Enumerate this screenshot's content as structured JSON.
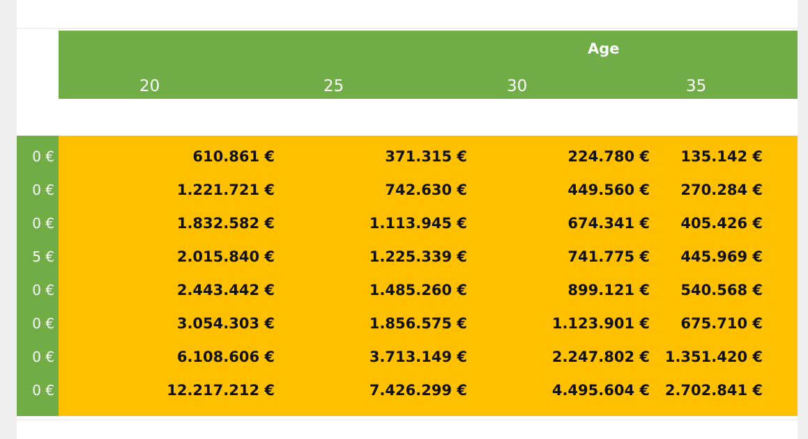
{
  "header": {
    "title": "Age",
    "columns": [
      "20",
      "25",
      "30",
      "35"
    ]
  },
  "row_labels": [
    "0 €",
    "0 €",
    "0 €",
    "5 €",
    "0 €",
    "0 €",
    "0 €",
    "0 €"
  ],
  "table": {
    "rows": [
      [
        "610.861 €",
        "371.315 €",
        "224.780 €",
        "135.142 €"
      ],
      [
        "1.221.721 €",
        "742.630 €",
        "449.560 €",
        "270.284 €"
      ],
      [
        "1.832.582 €",
        "1.113.945 €",
        "674.341 €",
        "405.426 €"
      ],
      [
        "2.015.840 €",
        "1.225.339 €",
        "741.775 €",
        "445.969 €"
      ],
      [
        "2.443.442 €",
        "1.485.260 €",
        "899.121 €",
        "540.568 €"
      ],
      [
        "3.054.303 €",
        "1.856.575 €",
        "1.123.901 €",
        "675.710 €"
      ],
      [
        "6.108.606 €",
        "3.713.149 €",
        "2.247.802 €",
        "1.351.420 €"
      ],
      [
        "12.217.212 €",
        "7.426.299 €",
        "4.495.604 €",
        "2.702.841 €"
      ]
    ]
  },
  "colors": {
    "header_green": "#70ad47",
    "data_yellow": "#ffc000",
    "text_dark": "#111111",
    "text_white": "#ffffff"
  }
}
